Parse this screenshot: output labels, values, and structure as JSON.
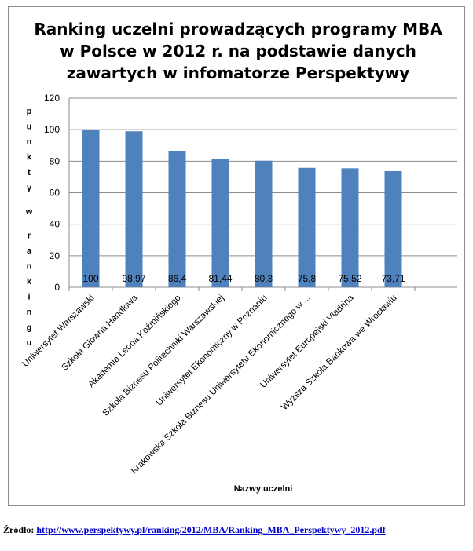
{
  "chart_data": {
    "type": "bar",
    "title_lines": [
      "Ranking uczelni prowadzących programy MBA",
      "w Polsce w 2012 r. na podstawie danych",
      "zawartych w infomatorze Perspektywy"
    ],
    "xlabel": "Nazwy uczelni",
    "ylabel": "punkty w rankingu",
    "ylim": [
      0,
      120
    ],
    "yticks": [
      0,
      20,
      40,
      60,
      80,
      100,
      120
    ],
    "grid": true,
    "legend": "none",
    "bar_color": "#4f81bd",
    "categories": [
      "Uniwersytet Warszawski",
      "Szkoła Głowna Handlowa",
      "Akademia Leona Koźmińskiego",
      "Szkoła Biznesu Politechniki Warszawskiej",
      "Uniwersytet Ekonomiczny  w Poznaniu",
      "Krakowska Szkoła Biznesu Uniwersytetu Ekonomicznego w ...",
      "Uniwersytet Europejski Vladrina",
      "Wyższa Szkoła Bankowa  we Wrocławiu"
    ],
    "values": [
      100,
      98.97,
      86.4,
      81.44,
      80.3,
      75.8,
      75.52,
      73.71
    ],
    "data_labels": [
      "100",
      "98,97",
      "86,4",
      "81,44",
      "80,3",
      "75,8",
      "75,52",
      "73,71"
    ]
  },
  "source": {
    "label": "Źródło:",
    "link": "http://www.perspektywy.pl/ranking/2012/MBA/Ranking_MBA_Perspektywy_2012.pdf"
  }
}
